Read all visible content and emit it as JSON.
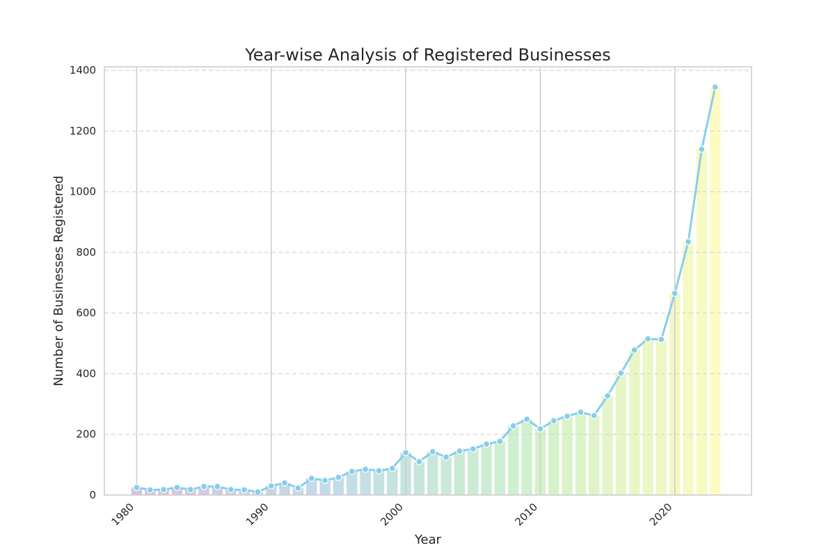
{
  "chart_data": {
    "type": "bar",
    "title": "Year-wise Analysis of Registered Businesses",
    "xlabel": "Year",
    "ylabel": "Number of Businesses Registered",
    "x": [
      1980,
      1981,
      1982,
      1983,
      1984,
      1985,
      1986,
      1987,
      1988,
      1989,
      1990,
      1991,
      1992,
      1993,
      1994,
      1995,
      1996,
      1997,
      1998,
      1999,
      2000,
      2001,
      2002,
      2003,
      2004,
      2005,
      2006,
      2007,
      2008,
      2009,
      2010,
      2011,
      2012,
      2013,
      2014,
      2015,
      2016,
      2017,
      2018,
      2019,
      2020,
      2021,
      2022,
      2023
    ],
    "values": [
      25,
      17,
      18,
      25,
      18,
      28,
      28,
      18,
      17,
      10,
      30,
      40,
      23,
      55,
      48,
      58,
      78,
      85,
      80,
      88,
      140,
      110,
      143,
      125,
      145,
      152,
      168,
      177,
      228,
      250,
      218,
      245,
      260,
      273,
      262,
      327,
      402,
      478,
      515,
      513,
      665,
      835,
      1140,
      1345
    ],
    "series": [
      {
        "type": "bar",
        "values": [
          25,
          17,
          18,
          25,
          18,
          28,
          28,
          18,
          17,
          10,
          30,
          40,
          23,
          55,
          48,
          58,
          78,
          85,
          80,
          88,
          140,
          110,
          143,
          125,
          145,
          152,
          168,
          177,
          228,
          250,
          218,
          245,
          260,
          273,
          262,
          327,
          402,
          478,
          515,
          513,
          665,
          835,
          1140,
          1345
        ]
      },
      {
        "type": "line",
        "values": [
          25,
          17,
          18,
          25,
          18,
          28,
          28,
          18,
          17,
          10,
          30,
          40,
          23,
          55,
          48,
          58,
          78,
          85,
          80,
          88,
          140,
          110,
          143,
          125,
          145,
          152,
          168,
          177,
          228,
          250,
          218,
          245,
          260,
          273,
          262,
          327,
          402,
          478,
          515,
          513,
          665,
          835,
          1140,
          1345
        ]
      }
    ],
    "xlim": [
      1977.6,
      2025.7
    ],
    "ylim": [
      0,
      1412
    ],
    "xticks": [
      1980,
      1990,
      2000,
      2010,
      2020
    ],
    "yticks": [
      0,
      200,
      400,
      600,
      800,
      1000,
      1200,
      1400
    ],
    "grid": true,
    "legend": "none",
    "colors": {
      "line": "#87ceeb",
      "marker_fill": "#87ceeb",
      "bar_gradient": [
        "#d3b8d3",
        "#b7d6e6",
        "#c7eec4",
        "#fbfab8"
      ],
      "vertical_grid": "#cccccc",
      "horizontal_grid": "#d6d6d6",
      "frame": "#cccccc"
    }
  }
}
